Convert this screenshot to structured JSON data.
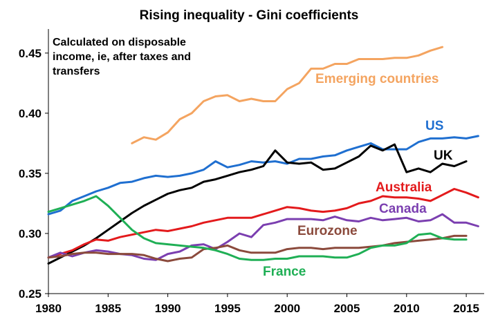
{
  "chart_data": {
    "type": "line",
    "title": "Rising inequality - Gini coefficients",
    "annotation": [
      "Calculated on disposable",
      "income, ie, after taxes and",
      "transfers"
    ],
    "xlabel": "",
    "ylabel": "",
    "xlim": [
      1980,
      2016.5
    ],
    "ylim": [
      0.25,
      0.47
    ],
    "x_ticks": [
      "1980",
      "1985",
      "1990",
      "1995",
      "2000",
      "2005",
      "2010",
      "2015"
    ],
    "y_ticks": [
      "0.25",
      "0.30",
      "0.35",
      "0.40",
      "0.45"
    ],
    "grid": false,
    "legend": "inline labels",
    "series": [
      {
        "name": "Emerging countries",
        "color": "#F4A460",
        "points": [
          [
            1987,
            0.375
          ],
          [
            1988,
            0.38
          ],
          [
            1989,
            0.378
          ],
          [
            1990,
            0.384
          ],
          [
            1991,
            0.395
          ],
          [
            1992,
            0.4
          ],
          [
            1993,
            0.41
          ],
          [
            1994,
            0.414
          ],
          [
            1995,
            0.415
          ],
          [
            1996,
            0.41
          ],
          [
            1997,
            0.412
          ],
          [
            1998,
            0.41
          ],
          [
            1999,
            0.41
          ],
          [
            2000,
            0.42
          ],
          [
            2001,
            0.425
          ],
          [
            2002,
            0.437
          ],
          [
            2003,
            0.437
          ],
          [
            2004,
            0.441
          ],
          [
            2005,
            0.441
          ],
          [
            2006,
            0.445
          ],
          [
            2007,
            0.445
          ],
          [
            2008,
            0.445
          ],
          [
            2009,
            0.446
          ],
          [
            2010,
            0.446
          ],
          [
            2011,
            0.448
          ],
          [
            2012,
            0.452
          ],
          [
            2013,
            0.455
          ]
        ]
      },
      {
        "name": "US",
        "color": "#1F6FD0",
        "points": [
          [
            1980,
            0.316
          ],
          [
            1981,
            0.319
          ],
          [
            1982,
            0.327
          ],
          [
            1983,
            0.331
          ],
          [
            1984,
            0.335
          ],
          [
            1985,
            0.338
          ],
          [
            1986,
            0.342
          ],
          [
            1987,
            0.343
          ],
          [
            1988,
            0.346
          ],
          [
            1989,
            0.348
          ],
          [
            1990,
            0.347
          ],
          [
            1991,
            0.348
          ],
          [
            1992,
            0.35
          ],
          [
            1993,
            0.353
          ],
          [
            1994,
            0.36
          ],
          [
            1995,
            0.355
          ],
          [
            1996,
            0.357
          ],
          [
            1997,
            0.36
          ],
          [
            1998,
            0.359
          ],
          [
            1999,
            0.36
          ],
          [
            2000,
            0.358
          ],
          [
            2001,
            0.362
          ],
          [
            2002,
            0.362
          ],
          [
            2003,
            0.364
          ],
          [
            2004,
            0.365
          ],
          [
            2005,
            0.369
          ],
          [
            2006,
            0.372
          ],
          [
            2007,
            0.375
          ],
          [
            2008,
            0.37
          ],
          [
            2009,
            0.37
          ],
          [
            2010,
            0.37
          ],
          [
            2011,
            0.376
          ],
          [
            2012,
            0.379
          ],
          [
            2013,
            0.379
          ],
          [
            2014,
            0.38
          ],
          [
            2015,
            0.379
          ],
          [
            2016,
            0.381
          ]
        ]
      },
      {
        "name": "UK",
        "color": "#000000",
        "points": [
          [
            1980,
            0.275
          ],
          [
            1981,
            0.28
          ],
          [
            1982,
            0.285
          ],
          [
            1983,
            0.29
          ],
          [
            1984,
            0.296
          ],
          [
            1985,
            0.303
          ],
          [
            1986,
            0.31
          ],
          [
            1987,
            0.317
          ],
          [
            1988,
            0.323
          ],
          [
            1989,
            0.328
          ],
          [
            1990,
            0.333
          ],
          [
            1991,
            0.336
          ],
          [
            1992,
            0.338
          ],
          [
            1993,
            0.343
          ],
          [
            1994,
            0.345
          ],
          [
            1995,
            0.348
          ],
          [
            1996,
            0.351
          ],
          [
            1997,
            0.353
          ],
          [
            1998,
            0.356
          ],
          [
            1999,
            0.369
          ],
          [
            2000,
            0.359
          ],
          [
            2001,
            0.358
          ],
          [
            2002,
            0.359
          ],
          [
            2003,
            0.353
          ],
          [
            2004,
            0.354
          ],
          [
            2005,
            0.359
          ],
          [
            2006,
            0.364
          ],
          [
            2007,
            0.373
          ],
          [
            2008,
            0.369
          ],
          [
            2009,
            0.374
          ],
          [
            2010,
            0.351
          ],
          [
            2011,
            0.354
          ],
          [
            2012,
            0.351
          ],
          [
            2013,
            0.358
          ],
          [
            2014,
            0.356
          ],
          [
            2015,
            0.36
          ]
        ]
      },
      {
        "name": "Australia",
        "color": "#E31A1C",
        "points": [
          [
            1980,
            0.28
          ],
          [
            1981,
            0.283
          ],
          [
            1982,
            0.286
          ],
          [
            1983,
            0.291
          ],
          [
            1984,
            0.295
          ],
          [
            1985,
            0.294
          ],
          [
            1986,
            0.297
          ],
          [
            1987,
            0.299
          ],
          [
            1988,
            0.301
          ],
          [
            1989,
            0.303
          ],
          [
            1990,
            0.302
          ],
          [
            1991,
            0.304
          ],
          [
            1992,
            0.306
          ],
          [
            1993,
            0.309
          ],
          [
            1994,
            0.311
          ],
          [
            1995,
            0.313
          ],
          [
            1996,
            0.313
          ],
          [
            1997,
            0.313
          ],
          [
            1998,
            0.316
          ],
          [
            1999,
            0.319
          ],
          [
            2000,
            0.322
          ],
          [
            2001,
            0.321
          ],
          [
            2002,
            0.319
          ],
          [
            2003,
            0.318
          ],
          [
            2004,
            0.319
          ],
          [
            2005,
            0.321
          ],
          [
            2006,
            0.325
          ],
          [
            2007,
            0.327
          ],
          [
            2008,
            0.331
          ],
          [
            2009,
            0.33
          ],
          [
            2010,
            0.33
          ],
          [
            2011,
            0.329
          ],
          [
            2012,
            0.327
          ],
          [
            2013,
            0.332
          ],
          [
            2014,
            0.337
          ],
          [
            2015,
            0.334
          ],
          [
            2016,
            0.33
          ]
        ]
      },
      {
        "name": "Canada",
        "color": "#7B3FB0",
        "points": [
          [
            1980,
            0.28
          ],
          [
            1981,
            0.284
          ],
          [
            1982,
            0.281
          ],
          [
            1983,
            0.284
          ],
          [
            1984,
            0.286
          ],
          [
            1985,
            0.285
          ],
          [
            1986,
            0.283
          ],
          [
            1987,
            0.282
          ],
          [
            1988,
            0.279
          ],
          [
            1989,
            0.278
          ],
          [
            1990,
            0.283
          ],
          [
            1991,
            0.285
          ],
          [
            1992,
            0.29
          ],
          [
            1993,
            0.291
          ],
          [
            1994,
            0.287
          ],
          [
            1995,
            0.293
          ],
          [
            1996,
            0.3
          ],
          [
            1997,
            0.297
          ],
          [
            1998,
            0.307
          ],
          [
            1999,
            0.309
          ],
          [
            2000,
            0.312
          ],
          [
            2001,
            0.312
          ],
          [
            2002,
            0.312
          ],
          [
            2003,
            0.311
          ],
          [
            2004,
            0.314
          ],
          [
            2005,
            0.311
          ],
          [
            2006,
            0.31
          ],
          [
            2007,
            0.313
          ],
          [
            2008,
            0.311
          ],
          [
            2009,
            0.312
          ],
          [
            2010,
            0.313
          ],
          [
            2011,
            0.31
          ],
          [
            2012,
            0.311
          ],
          [
            2013,
            0.316
          ],
          [
            2014,
            0.309
          ],
          [
            2015,
            0.309
          ],
          [
            2016,
            0.306
          ]
        ]
      },
      {
        "name": "Eurozone",
        "color": "#8B4A3C",
        "points": [
          [
            1980,
            0.28
          ],
          [
            1981,
            0.281
          ],
          [
            1982,
            0.283
          ],
          [
            1983,
            0.284
          ],
          [
            1984,
            0.284
          ],
          [
            1985,
            0.283
          ],
          [
            1986,
            0.283
          ],
          [
            1987,
            0.283
          ],
          [
            1988,
            0.282
          ],
          [
            1989,
            0.279
          ],
          [
            1990,
            0.277
          ],
          [
            1991,
            0.279
          ],
          [
            1992,
            0.28
          ],
          [
            1993,
            0.287
          ],
          [
            1994,
            0.288
          ],
          [
            1995,
            0.29
          ],
          [
            1996,
            0.286
          ],
          [
            1997,
            0.284
          ],
          [
            1998,
            0.284
          ],
          [
            1999,
            0.284
          ],
          [
            2000,
            0.287
          ],
          [
            2001,
            0.288
          ],
          [
            2002,
            0.288
          ],
          [
            2003,
            0.287
          ],
          [
            2004,
            0.288
          ],
          [
            2005,
            0.288
          ],
          [
            2006,
            0.288
          ],
          [
            2007,
            0.289
          ],
          [
            2008,
            0.29
          ],
          [
            2009,
            0.292
          ],
          [
            2010,
            0.293
          ],
          [
            2011,
            0.294
          ],
          [
            2012,
            0.295
          ],
          [
            2013,
            0.296
          ],
          [
            2014,
            0.298
          ],
          [
            2015,
            0.298
          ]
        ]
      },
      {
        "name": "France",
        "color": "#1FAF55",
        "points": [
          [
            1980,
            0.318
          ],
          [
            1981,
            0.321
          ],
          [
            1982,
            0.324
          ],
          [
            1983,
            0.327
          ],
          [
            1984,
            0.331
          ],
          [
            1985,
            0.323
          ],
          [
            1986,
            0.313
          ],
          [
            1987,
            0.303
          ],
          [
            1988,
            0.296
          ],
          [
            1989,
            0.292
          ],
          [
            1990,
            0.291
          ],
          [
            1991,
            0.29
          ],
          [
            1992,
            0.289
          ],
          [
            1993,
            0.288
          ],
          [
            1994,
            0.286
          ],
          [
            1995,
            0.283
          ],
          [
            1996,
            0.279
          ],
          [
            1997,
            0.278
          ],
          [
            1998,
            0.278
          ],
          [
            1999,
            0.279
          ],
          [
            2000,
            0.279
          ],
          [
            2001,
            0.281
          ],
          [
            2002,
            0.281
          ],
          [
            2003,
            0.281
          ],
          [
            2004,
            0.28
          ],
          [
            2005,
            0.28
          ],
          [
            2006,
            0.283
          ],
          [
            2007,
            0.288
          ],
          [
            2008,
            0.29
          ],
          [
            2009,
            0.29
          ],
          [
            2010,
            0.292
          ],
          [
            2011,
            0.299
          ],
          [
            2012,
            0.3
          ],
          [
            2013,
            0.296
          ],
          [
            2014,
            0.295
          ],
          [
            2015,
            0.295
          ]
        ]
      }
    ]
  }
}
